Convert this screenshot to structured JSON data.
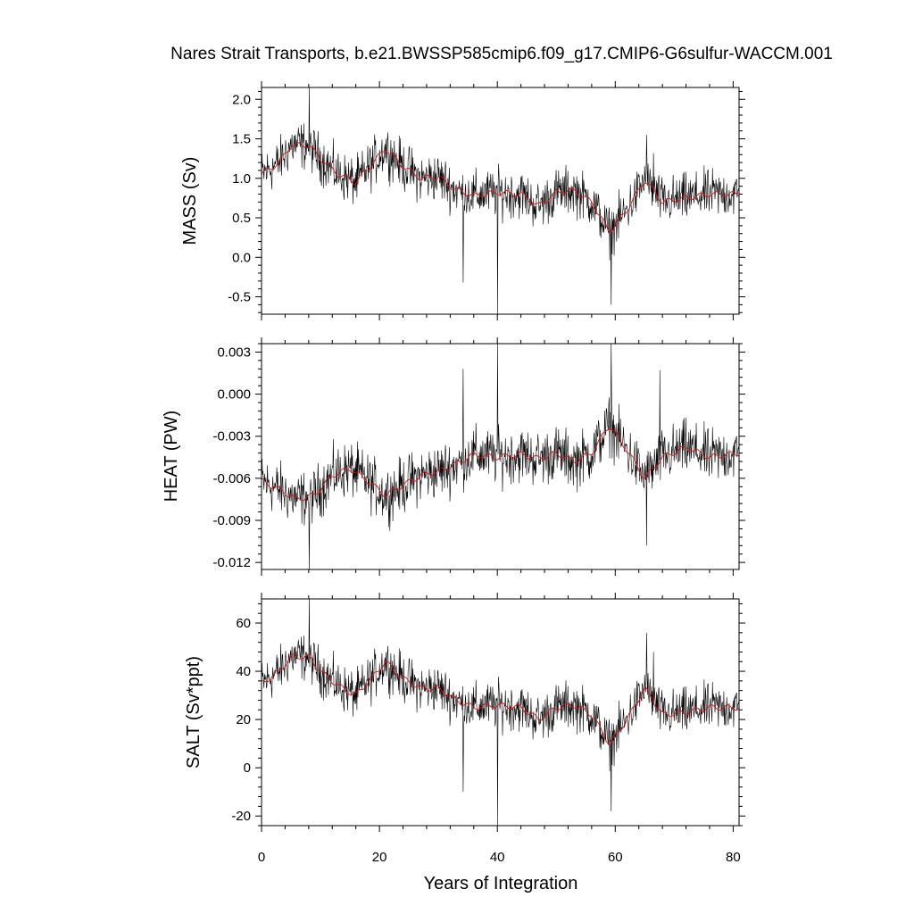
{
  "chart_data": {
    "title": "Nares Strait Transports, b.e21.BWSSP585cmip6.f09_g17.CMIP6-G6sulfur-WACCM.001",
    "type": "line",
    "xlabel": "Years of Integration",
    "xlim": [
      0,
      81
    ],
    "xticks": [
      0,
      20,
      40,
      60,
      80
    ],
    "xtick_labels": [
      "0",
      "20",
      "40",
      "60",
      "80"
    ],
    "colors": {
      "raw": "#000000",
      "smoothed": "#e01010"
    },
    "panels": [
      {
        "ylabel": "MASS (Sv)",
        "ylim": [
          -0.72,
          2.15
        ],
        "yticks": [
          2.0,
          1.5,
          1.0,
          0.5,
          0.0,
          -0.5
        ],
        "ytick_labels": [
          "2.0",
          "1.5",
          "1.0",
          "0.5",
          "0.0",
          "-0.5"
        ],
        "smooth_keypoints": [
          [
            0,
            1.05
          ],
          [
            3,
            1.2
          ],
          [
            5,
            1.42
          ],
          [
            8,
            1.42
          ],
          [
            10,
            1.25
          ],
          [
            13,
            1.05
          ],
          [
            16,
            0.95
          ],
          [
            19,
            1.2
          ],
          [
            21,
            1.38
          ],
          [
            24,
            1.15
          ],
          [
            27,
            1.0
          ],
          [
            30,
            1.02
          ],
          [
            33,
            0.85
          ],
          [
            36,
            0.78
          ],
          [
            40,
            0.82
          ],
          [
            44,
            0.8
          ],
          [
            47,
            0.65
          ],
          [
            50,
            0.82
          ],
          [
            53,
            0.85
          ],
          [
            56,
            0.7
          ],
          [
            59,
            0.32
          ],
          [
            62,
            0.6
          ],
          [
            65,
            0.98
          ],
          [
            68,
            0.7
          ],
          [
            72,
            0.75
          ],
          [
            76,
            0.8
          ],
          [
            81,
            0.8
          ]
        ],
        "noise_amplitude": 0.28,
        "spikes": [
          [
            8.1,
            2.15
          ],
          [
            34.2,
            -0.32
          ],
          [
            40.0,
            -0.78
          ],
          [
            59.3,
            -0.6
          ],
          [
            65.3,
            1.55
          ],
          [
            66.5,
            1.32
          ]
        ]
      },
      {
        "ylabel": "HEAT (PW)",
        "ylim": [
          -0.0125,
          0.0036
        ],
        "yticks": [
          0.003,
          0.0,
          -0.003,
          -0.006,
          -0.009,
          -0.012
        ],
        "ytick_labels": [
          "0.003",
          "0.000",
          "-0.003",
          "-0.006",
          "-0.009",
          "-0.012"
        ],
        "smooth_keypoints": [
          [
            0,
            -0.0062
          ],
          [
            3,
            -0.0068
          ],
          [
            6,
            -0.0075
          ],
          [
            9,
            -0.0072
          ],
          [
            12,
            -0.0058
          ],
          [
            15,
            -0.0053
          ],
          [
            18,
            -0.0062
          ],
          [
            21,
            -0.0072
          ],
          [
            24,
            -0.0065
          ],
          [
            27,
            -0.0058
          ],
          [
            30,
            -0.0055
          ],
          [
            33,
            -0.005
          ],
          [
            36,
            -0.0043
          ],
          [
            40,
            -0.0045
          ],
          [
            44,
            -0.0043
          ],
          [
            47,
            -0.0046
          ],
          [
            50,
            -0.0042
          ],
          [
            53,
            -0.0048
          ],
          [
            56,
            -0.0042
          ],
          [
            59,
            -0.0022
          ],
          [
            62,
            -0.004
          ],
          [
            65,
            -0.006
          ],
          [
            68,
            -0.0045
          ],
          [
            72,
            -0.0038
          ],
          [
            76,
            -0.0045
          ],
          [
            81,
            -0.0042
          ]
        ],
        "noise_amplitude": 0.0018,
        "spikes": [
          [
            8.1,
            -0.0125
          ],
          [
            34.2,
            0.0018
          ],
          [
            40.0,
            0.0036
          ],
          [
            59.3,
            0.0036
          ],
          [
            65.3,
            -0.0108
          ],
          [
            67.6,
            0.0017
          ]
        ]
      },
      {
        "ylabel": "SALT (Sv*ppt)",
        "ylim": [
          -24,
          70
        ],
        "yticks": [
          60,
          40,
          20,
          0,
          -20
        ],
        "ytick_labels": [
          "60",
          "40",
          "20",
          "0",
          "-20"
        ],
        "smooth_keypoints": [
          [
            0,
            35
          ],
          [
            3,
            40
          ],
          [
            5,
            46
          ],
          [
            8,
            46
          ],
          [
            10,
            40
          ],
          [
            13,
            34
          ],
          [
            16,
            30
          ],
          [
            19,
            38
          ],
          [
            21,
            44
          ],
          [
            24,
            37
          ],
          [
            27,
            33
          ],
          [
            30,
            33
          ],
          [
            33,
            28
          ],
          [
            36,
            25
          ],
          [
            40,
            26
          ],
          [
            44,
            25
          ],
          [
            47,
            20
          ],
          [
            50,
            25
          ],
          [
            53,
            26
          ],
          [
            56,
            22
          ],
          [
            59,
            10
          ],
          [
            62,
            20
          ],
          [
            65,
            33
          ],
          [
            68,
            22
          ],
          [
            72,
            23
          ],
          [
            76,
            25
          ],
          [
            81,
            25
          ]
        ],
        "noise_amplitude": 9,
        "spikes": [
          [
            8.1,
            70
          ],
          [
            34.2,
            -10
          ],
          [
            40.0,
            -24
          ],
          [
            59.3,
            -18
          ],
          [
            65.3,
            56
          ],
          [
            66.5,
            48
          ]
        ]
      }
    ]
  }
}
